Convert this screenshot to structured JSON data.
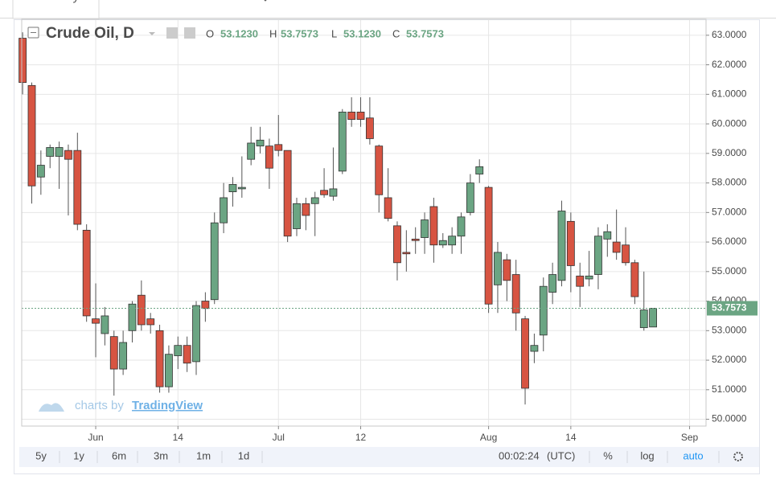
{
  "tabs": [
    "Summary",
    "Forecast",
    "Download",
    "Alerts"
  ],
  "toolbar": {
    "ranges": [
      "5y",
      "1y",
      "6m",
      "3m",
      "1m",
      "1d"
    ],
    "clock": "00:02:24",
    "timezone": "(UTC)",
    "percent": "%",
    "log": "log",
    "auto": "auto"
  },
  "chart_data": {
    "type": "candlestick",
    "title": "Crude Oil, D",
    "legend": {
      "o_label": "O",
      "open": "53.1230",
      "h_label": "H",
      "high": "53.7573",
      "l_label": "L",
      "low": "53.1230",
      "c_label": "C",
      "close": "53.7573"
    },
    "watermark": {
      "prefix": "charts by",
      "brand": "TradingView"
    },
    "last_price": 53.7573,
    "last_price_label": "53.7573",
    "up_color": "#6ba583",
    "down_color": "#d75442",
    "grid": true,
    "xlim": [
      -0.1,
      74.8
    ],
    "xticks": [
      {
        "value": 8,
        "label": "Jun"
      },
      {
        "value": 17,
        "label": "14"
      },
      {
        "value": 28,
        "label": "Jul"
      },
      {
        "value": 37,
        "label": "12"
      },
      {
        "value": 51,
        "label": "Aug"
      },
      {
        "value": 60,
        "label": "14"
      },
      {
        "value": 73,
        "label": "Sep"
      }
    ],
    "ylim": [
      49.77,
      63.54
    ],
    "yticks": [
      {
        "value": 50,
        "label": "50.0000"
      },
      {
        "value": 51,
        "label": "51.0000"
      },
      {
        "value": 52,
        "label": "52.0000"
      },
      {
        "value": 53,
        "label": "53.0000"
      },
      {
        "value": 54,
        "label": "54.0000"
      },
      {
        "value": 55,
        "label": "55.0000"
      },
      {
        "value": 56,
        "label": "56.0000"
      },
      {
        "value": 57,
        "label": "57.0000"
      },
      {
        "value": 58,
        "label": "58.0000"
      },
      {
        "value": 59,
        "label": "59.0000"
      },
      {
        "value": 60,
        "label": "60.0000"
      },
      {
        "value": 61,
        "label": "61.0000"
      },
      {
        "value": 62,
        "label": "62.0000"
      },
      {
        "value": 63,
        "label": "63.0000"
      }
    ],
    "open": [
      62.9,
      61.3,
      58.2,
      58.9,
      58.9,
      59.1,
      59.1,
      56.4,
      53.4,
      52.9,
      52.8,
      51.7,
      53.0,
      54.2,
      53.4,
      53.0,
      51.1,
      52.15,
      52.5,
      51.95,
      54.0,
      54.05,
      56.65,
      57.7,
      57.8,
      58.8,
      59.25,
      59.25,
      59.3,
      59.1,
      56.45,
      57.3,
      57.3,
      57.75,
      57.55,
      58.4,
      60.4,
      60.4,
      60.2,
      59.25,
      57.5,
      56.55,
      55.65,
      56.1,
      56.15,
      57.2,
      55.9,
      55.9,
      56.2,
      57.0,
      58.3,
      57.85,
      54.55,
      55.4,
      54.9,
      53.4,
      52.3,
      52.85,
      54.3,
      54.7,
      56.7,
      54.85,
      54.75,
      54.9,
      56.1,
      56.0,
      55.9,
      55.3,
      53.1,
      53.123
    ],
    "high": [
      63.1,
      61.4,
      59.1,
      59.3,
      59.4,
      59.3,
      59.7,
      56.6,
      54.6,
      53.8,
      53.0,
      53.0,
      54.0,
      54.7,
      53.6,
      53.2,
      52.5,
      52.8,
      52.8,
      54.0,
      54.3,
      57.0,
      58.0,
      58.2,
      58.9,
      59.9,
      59.9,
      59.5,
      60.3,
      59.1,
      57.5,
      57.5,
      57.7,
      58.5,
      59.2,
      60.5,
      60.9,
      60.9,
      60.9,
      59.3,
      58.5,
      56.7,
      56.4,
      56.5,
      57.0,
      57.5,
      56.3,
      56.5,
      57.0,
      58.3,
      58.8,
      57.9,
      56.0,
      55.6,
      55.4,
      53.5,
      52.9,
      54.8,
      55.3,
      57.4,
      57.0,
      55.3,
      55.7,
      56.5,
      56.6,
      57.1,
      56.5,
      55.4,
      55.0,
      53.7573
    ],
    "low": [
      61.0,
      57.3,
      57.6,
      58.5,
      57.8,
      56.9,
      56.4,
      53.3,
      52.1,
      52.5,
      50.8,
      51.5,
      52.6,
      53.0,
      52.9,
      50.9,
      50.9,
      51.7,
      51.6,
      51.5,
      53.3,
      53.9,
      56.3,
      57.2,
      57.5,
      58.6,
      59.0,
      57.8,
      58.9,
      56.0,
      56.2,
      56.4,
      56.2,
      57.5,
      57.4,
      58.3,
      59.9,
      59.9,
      59.3,
      57.0,
      56.7,
      54.7,
      55.0,
      55.6,
      55.6,
      55.3,
      55.8,
      55.6,
      55.6,
      56.9,
      58.0,
      53.6,
      53.6,
      54.0,
      53.0,
      50.5,
      51.9,
      52.3,
      53.9,
      54.5,
      54.3,
      53.8,
      54.5,
      54.4,
      55.5,
      55.4,
      55.2,
      53.9,
      53.0,
      53.123
    ],
    "close": [
      61.4,
      57.9,
      58.6,
      59.2,
      59.2,
      58.8,
      56.6,
      53.5,
      53.25,
      53.5,
      51.7,
      52.6,
      53.9,
      53.2,
      53.2,
      51.1,
      52.2,
      52.5,
      51.9,
      53.85,
      53.75,
      56.65,
      57.5,
      57.95,
      57.85,
      59.35,
      59.45,
      58.5,
      59.1,
      56.2,
      57.3,
      56.9,
      57.5,
      57.6,
      57.8,
      60.4,
      60.15,
      60.15,
      59.5,
      57.6,
      56.8,
      55.3,
      55.6,
      56.05,
      56.75,
      55.9,
      56.05,
      56.2,
      56.85,
      58.0,
      58.55,
      53.9,
      55.65,
      54.7,
      53.6,
      51.05,
      52.5,
      54.5,
      54.9,
      57.05,
      55.2,
      54.5,
      54.85,
      56.2,
      56.35,
      55.65,
      55.3,
      54.15,
      53.7,
      53.7573
    ]
  }
}
